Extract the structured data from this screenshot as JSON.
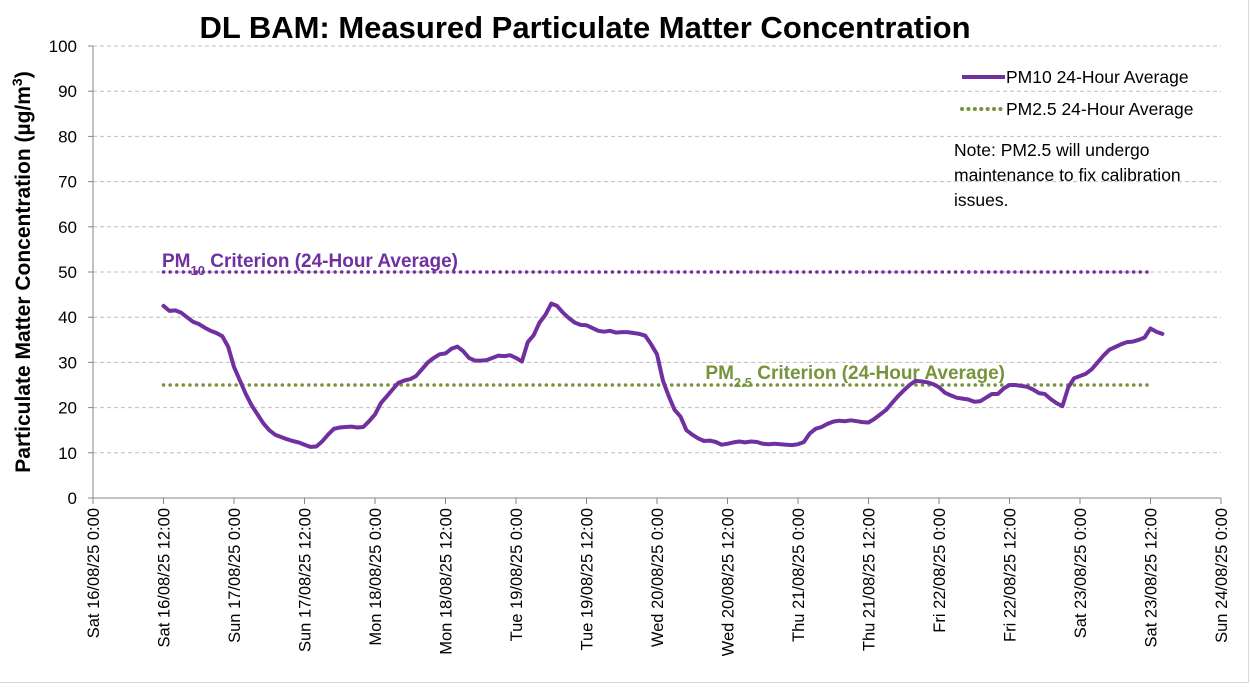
{
  "chart_data": {
    "type": "line",
    "title": "DL BAM: Measured Particulate Matter Concentration",
    "ylabel": "Particulate Matter Concentration (µg/m³)",
    "xlabel": "",
    "ylim": [
      0,
      100
    ],
    "yticks": [
      0,
      10,
      20,
      30,
      40,
      50,
      60,
      70,
      80,
      90,
      100
    ],
    "x_tick_labels": [
      "Sat 16/08/25 0:00",
      "Sat 16/08/25 12:00",
      "Sun 17/08/25 0:00",
      "Sun 17/08/25 12:00",
      "Mon 18/08/25 0:00",
      "Mon 18/08/25 12:00",
      "Tue 19/08/25 0:00",
      "Tue 19/08/25 12:00",
      "Wed 20/08/25 0:00",
      "Wed 20/08/25 12:00",
      "Thu 21/08/25 0:00",
      "Thu 21/08/25 12:00",
      "Fri 22/08/25 0:00",
      "Fri 22/08/25 12:00",
      "Sat 23/08/25 0:00",
      "Sat 23/08/25 12:00",
      "Sun 24/08/25 0:00"
    ],
    "grid": "horizontal dashed",
    "legend_placement": "top-right",
    "colors": {
      "pm10": "#7030a0",
      "pm25": "#77933c"
    },
    "legend": [
      {
        "label": "PM10 24-Hour Average",
        "color": "#7030a0",
        "style": "solid"
      },
      {
        "label": "PM2.5 24-Hour Average",
        "color": "#77933c",
        "style": "dotted"
      }
    ],
    "note": [
      "Note: PM2.5 will undergo",
      "maintenance to fix calibration",
      "issues."
    ],
    "criteria": [
      {
        "prefix": "PM",
        "sub": "10",
        "suffix": " Criterion (24-Hour Average)",
        "value": 50,
        "color": "#7030a0",
        "x_start": "16/08/25 12:00",
        "x_end": "23/08/25 12:00"
      },
      {
        "prefix": "PM",
        "sub": "2.5",
        "suffix": " Criterion (24-Hour Average)",
        "value": 25,
        "color": "#77933c",
        "x_start": "16/08/25 12:00",
        "x_end": "23/08/25 12:00"
      }
    ],
    "series": [
      {
        "name": "PM10 24-Hour Average",
        "color": "#7030a0",
        "points": [
          [
            "16/08/25 12:00",
            42.5
          ],
          [
            "16/08/25 13:00",
            41.4
          ],
          [
            "16/08/25 14:00",
            41.5
          ],
          [
            "16/08/25 15:00",
            41.0
          ],
          [
            "16/08/25 16:00",
            40.0
          ],
          [
            "16/08/25 17:00",
            39.0
          ],
          [
            "16/08/25 18:00",
            38.5
          ],
          [
            "16/08/25 19:00",
            37.7
          ],
          [
            "16/08/25 20:00",
            37.0
          ],
          [
            "16/08/25 21:00",
            36.5
          ],
          [
            "16/08/25 22:00",
            35.8
          ],
          [
            "16/08/25 23:00",
            33.5
          ],
          [
            "17/08/25 00:00",
            29.0
          ],
          [
            "17/08/25 01:00",
            26.0
          ],
          [
            "17/08/25 02:00",
            23.0
          ],
          [
            "17/08/25 03:00",
            20.5
          ],
          [
            "17/08/25 04:00",
            18.5
          ],
          [
            "17/08/25 05:00",
            16.5
          ],
          [
            "17/08/25 06:00",
            15.0
          ],
          [
            "17/08/25 07:00",
            14.0
          ],
          [
            "17/08/25 08:00",
            13.5
          ],
          [
            "17/08/25 09:00",
            13.0
          ],
          [
            "17/08/25 10:00",
            12.6
          ],
          [
            "17/08/25 11:00",
            12.3
          ],
          [
            "17/08/25 12:00",
            11.8
          ],
          [
            "17/08/25 13:00",
            11.3
          ],
          [
            "17/08/25 14:00",
            11.4
          ],
          [
            "17/08/25 15:00",
            12.5
          ],
          [
            "17/08/25 16:00",
            14.0
          ],
          [
            "17/08/25 17:00",
            15.3
          ],
          [
            "17/08/25 18:00",
            15.6
          ],
          [
            "17/08/25 19:00",
            15.7
          ],
          [
            "17/08/25 20:00",
            15.8
          ],
          [
            "17/08/25 21:00",
            15.6
          ],
          [
            "17/08/25 22:00",
            15.7
          ],
          [
            "17/08/25 23:00",
            17.0
          ],
          [
            "18/08/25 00:00",
            18.5
          ],
          [
            "18/08/25 01:00",
            21.0
          ],
          [
            "18/08/25 02:00",
            22.5
          ],
          [
            "18/08/25 03:00",
            24.0
          ],
          [
            "18/08/25 04:00",
            25.5
          ],
          [
            "18/08/25 05:00",
            26.0
          ],
          [
            "18/08/25 06:00",
            26.3
          ],
          [
            "18/08/25 07:00",
            27.0
          ],
          [
            "18/08/25 08:00",
            28.5
          ],
          [
            "18/08/25 09:00",
            30.0
          ],
          [
            "18/08/25 10:00",
            31.0
          ],
          [
            "18/08/25 11:00",
            31.8
          ],
          [
            "18/08/25 12:00",
            32.0
          ],
          [
            "18/08/25 13:00",
            33.0
          ],
          [
            "18/08/25 14:00",
            33.5
          ],
          [
            "18/08/25 15:00",
            32.5
          ],
          [
            "18/08/25 16:00",
            31.0
          ],
          [
            "18/08/25 17:00",
            30.4
          ],
          [
            "18/08/25 18:00",
            30.4
          ],
          [
            "18/08/25 19:00",
            30.5
          ],
          [
            "18/08/25 20:00",
            31.0
          ],
          [
            "18/08/25 21:00",
            31.5
          ],
          [
            "18/08/25 22:00",
            31.4
          ],
          [
            "18/08/25 23:00",
            31.6
          ],
          [
            "19/08/25 00:00",
            31.0
          ],
          [
            "19/08/25 01:00",
            30.2
          ],
          [
            "19/08/25 02:00",
            34.5
          ],
          [
            "19/08/25 03:00",
            36.0
          ],
          [
            "19/08/25 04:00",
            38.8
          ],
          [
            "19/08/25 05:00",
            40.5
          ],
          [
            "19/08/25 06:00",
            43.0
          ],
          [
            "19/08/25 07:00",
            42.5
          ],
          [
            "19/08/25 08:00",
            41.0
          ],
          [
            "19/08/25 09:00",
            39.8
          ],
          [
            "19/08/25 10:00",
            38.8
          ],
          [
            "19/08/25 11:00",
            38.3
          ],
          [
            "19/08/25 12:00",
            38.2
          ],
          [
            "19/08/25 13:00",
            37.6
          ],
          [
            "19/08/25 14:00",
            37.0
          ],
          [
            "19/08/25 15:00",
            36.8
          ],
          [
            "19/08/25 16:00",
            37.0
          ],
          [
            "19/08/25 17:00",
            36.6
          ],
          [
            "19/08/25 18:00",
            36.7
          ],
          [
            "19/08/25 19:00",
            36.7
          ],
          [
            "19/08/25 20:00",
            36.5
          ],
          [
            "19/08/25 21:00",
            36.3
          ],
          [
            "19/08/25 22:00",
            35.9
          ],
          [
            "19/08/25 23:00",
            34.0
          ],
          [
            "20/08/25 00:00",
            31.8
          ],
          [
            "20/08/25 01:00",
            26.0
          ],
          [
            "20/08/25 02:00",
            22.5
          ],
          [
            "20/08/25 03:00",
            19.5
          ],
          [
            "20/08/25 04:00",
            18.0
          ],
          [
            "20/08/25 05:00",
            15.0
          ],
          [
            "20/08/25 06:00",
            14.0
          ],
          [
            "20/08/25 07:00",
            13.2
          ],
          [
            "20/08/25 08:00",
            12.6
          ],
          [
            "20/08/25 09:00",
            12.7
          ],
          [
            "20/08/25 10:00",
            12.4
          ],
          [
            "20/08/25 11:00",
            11.8
          ],
          [
            "20/08/25 12:00",
            12.0
          ],
          [
            "20/08/25 13:00",
            12.3
          ],
          [
            "20/08/25 14:00",
            12.5
          ],
          [
            "20/08/25 15:00",
            12.3
          ],
          [
            "20/08/25 16:00",
            12.5
          ],
          [
            "20/08/25 17:00",
            12.4
          ],
          [
            "20/08/25 18:00",
            12.0
          ],
          [
            "20/08/25 19:00",
            11.9
          ],
          [
            "20/08/25 20:00",
            12.0
          ],
          [
            "20/08/25 21:00",
            11.9
          ],
          [
            "20/08/25 22:00",
            11.8
          ],
          [
            "20/08/25 23:00",
            11.7
          ],
          [
            "21/08/25 00:00",
            11.9
          ],
          [
            "21/08/25 01:00",
            12.4
          ],
          [
            "21/08/25 02:00",
            14.3
          ],
          [
            "21/08/25 03:00",
            15.3
          ],
          [
            "21/08/25 04:00",
            15.7
          ],
          [
            "21/08/25 05:00",
            16.4
          ],
          [
            "21/08/25 06:00",
            16.9
          ],
          [
            "21/08/25 07:00",
            17.1
          ],
          [
            "21/08/25 08:00",
            17.0
          ],
          [
            "21/08/25 09:00",
            17.2
          ],
          [
            "21/08/25 10:00",
            17.0
          ],
          [
            "21/08/25 11:00",
            16.8
          ],
          [
            "21/08/25 12:00",
            16.7
          ],
          [
            "21/08/25 13:00",
            17.5
          ],
          [
            "21/08/25 14:00",
            18.5
          ],
          [
            "21/08/25 15:00",
            19.5
          ],
          [
            "21/08/25 16:00",
            21.0
          ],
          [
            "21/08/25 17:00",
            22.5
          ],
          [
            "21/08/25 18:00",
            23.8
          ],
          [
            "21/08/25 19:00",
            25.0
          ],
          [
            "21/08/25 20:00",
            25.9
          ],
          [
            "21/08/25 21:00",
            25.8
          ],
          [
            "21/08/25 22:00",
            25.6
          ],
          [
            "21/08/25 23:00",
            25.2
          ],
          [
            "22/08/25 00:00",
            24.5
          ],
          [
            "22/08/25 01:00",
            23.3
          ],
          [
            "22/08/25 02:00",
            22.7
          ],
          [
            "22/08/25 03:00",
            22.2
          ],
          [
            "22/08/25 04:00",
            22.0
          ],
          [
            "22/08/25 05:00",
            21.8
          ],
          [
            "22/08/25 06:00",
            21.3
          ],
          [
            "22/08/25 07:00",
            21.4
          ],
          [
            "22/08/25 08:00",
            22.2
          ],
          [
            "22/08/25 09:00",
            23.0
          ],
          [
            "22/08/25 10:00",
            23.0
          ],
          [
            "22/08/25 11:00",
            24.2
          ],
          [
            "22/08/25 12:00",
            25.0
          ],
          [
            "22/08/25 13:00",
            25.0
          ],
          [
            "22/08/25 14:00",
            24.8
          ],
          [
            "22/08/25 15:00",
            24.6
          ],
          [
            "22/08/25 16:00",
            24.0
          ],
          [
            "22/08/25 17:00",
            23.2
          ],
          [
            "22/08/25 18:00",
            23.0
          ],
          [
            "22/08/25 19:00",
            21.9
          ],
          [
            "22/08/25 20:00",
            21.0
          ],
          [
            "22/08/25 21:00",
            20.3
          ],
          [
            "22/08/25 22:00",
            24.5
          ],
          [
            "22/08/25 23:00",
            26.5
          ],
          [
            "23/08/25 00:00",
            27.0
          ],
          [
            "23/08/25 01:00",
            27.5
          ],
          [
            "23/08/25 02:00",
            28.5
          ],
          [
            "23/08/25 03:00",
            30.0
          ],
          [
            "23/08/25 04:00",
            31.5
          ],
          [
            "23/08/25 05:00",
            32.8
          ],
          [
            "23/08/25 06:00",
            33.4
          ],
          [
            "23/08/25 07:00",
            34.0
          ],
          [
            "23/08/25 08:00",
            34.5
          ],
          [
            "23/08/25 09:00",
            34.6
          ],
          [
            "23/08/25 10:00",
            35.0
          ],
          [
            "23/08/25 11:00",
            35.5
          ],
          [
            "23/08/25 12:00",
            37.5
          ],
          [
            "23/08/25 13:00",
            36.8
          ],
          [
            "23/08/25 14:00",
            36.3
          ]
        ]
      },
      {
        "name": "PM2.5 24-Hour Average",
        "color": "#77933c",
        "points": []
      }
    ]
  }
}
